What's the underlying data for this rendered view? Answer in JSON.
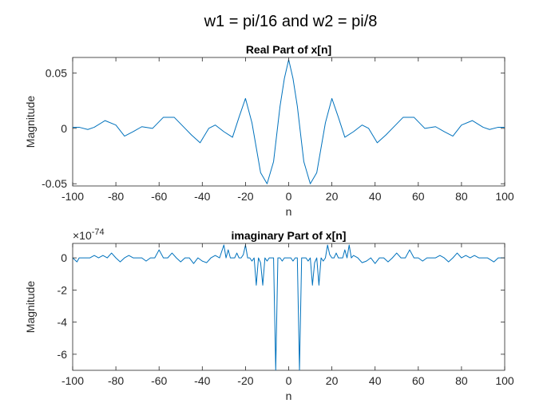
{
  "figure": {
    "suptitle": "w1 = pi/16 and w2 = pi/8"
  },
  "chart_data": [
    {
      "type": "line",
      "title": "Real Part of x[n]",
      "xlabel": "n",
      "ylabel": "Magnitude",
      "xlim": [
        -100,
        100
      ],
      "ylim": [
        -0.052,
        0.064
      ],
      "xticks": [
        -100,
        -80,
        -60,
        -40,
        -20,
        0,
        20,
        40,
        60,
        80,
        100
      ],
      "xtick_labels": [
        "-100",
        "-80",
        "-60",
        "-40",
        "-20",
        "0",
        "20",
        "40",
        "60",
        "80",
        "100"
      ],
      "yticks": [
        -0.05,
        0,
        0.05
      ],
      "ytick_labels": [
        "-0.05",
        "0",
        "0.05"
      ],
      "exponent_label": "",
      "grid": false,
      "color": "#0072BD",
      "series": [
        {
          "x": [
            -100,
            -97,
            -93,
            -90,
            -85,
            -80,
            -76,
            -72,
            -68,
            -63,
            -58,
            -53,
            -48,
            -45,
            -41,
            -37,
            -34,
            -30,
            -26,
            -23,
            -20,
            -17,
            -13,
            -10,
            -7,
            -4,
            -2,
            0,
            2,
            4,
            7,
            10,
            13,
            17,
            20,
            23,
            26,
            30,
            34,
            37,
            41,
            45,
            48,
            53,
            58,
            63,
            68,
            72,
            76,
            80,
            85,
            90,
            93,
            97,
            100
          ],
          "y": [
            0.001,
            0.001,
            -0.001,
            0.001,
            0.007,
            0.003,
            -0.007,
            -0.003,
            0.0015,
            0.0,
            0.01,
            0.01,
            0.0,
            -0.006,
            -0.013,
            0.0,
            0.003,
            -0.003,
            -0.008,
            0.01,
            0.027,
            0.005,
            -0.04,
            -0.05,
            -0.03,
            0.02,
            0.045,
            0.062,
            0.045,
            0.02,
            -0.03,
            -0.05,
            -0.04,
            0.005,
            0.027,
            0.01,
            -0.008,
            -0.003,
            0.003,
            0.0,
            -0.013,
            -0.006,
            0.0,
            0.01,
            0.01,
            0.0,
            0.0015,
            -0.003,
            -0.007,
            0.003,
            0.007,
            0.001,
            -0.001,
            0.001,
            0.001
          ]
        }
      ]
    },
    {
      "type": "line",
      "title": "imaginary Part of x[n]",
      "xlabel": "n",
      "ylabel": "Magnitude",
      "xlim": [
        -100,
        100
      ],
      "ylim": [
        -7,
        0.9
      ],
      "xticks": [
        -100,
        -80,
        -60,
        -40,
        -20,
        0,
        20,
        40,
        60,
        80,
        100
      ],
      "xtick_labels": [
        "-100",
        "-80",
        "-60",
        "-40",
        "-20",
        "0",
        "20",
        "40",
        "60",
        "80",
        "100"
      ],
      "yticks": [
        -6,
        -4,
        -2,
        0
      ],
      "ytick_labels": [
        "-6",
        "-4",
        "-2",
        "0"
      ],
      "exponent_label": "×10",
      "exponent_power": "-74",
      "grid": false,
      "color": "#0072BD",
      "series": [
        {
          "x": [
            -100,
            -98,
            -97,
            -95,
            -92,
            -90,
            -88,
            -86,
            -84,
            -82,
            -80,
            -78,
            -76,
            -74,
            -72,
            -70,
            -68,
            -66,
            -64,
            -62,
            -60,
            -58,
            -56,
            -54,
            -52,
            -50,
            -48,
            -46,
            -44,
            -42,
            -40,
            -38,
            -36,
            -34,
            -32,
            -30,
            -29,
            -28,
            -27,
            -26,
            -25,
            -24,
            -23,
            -22,
            -21,
            -20,
            -19,
            -18,
            -17,
            -16,
            -15,
            -14,
            -13,
            -12,
            -11,
            -10,
            -9,
            -8,
            -7,
            -6,
            -5,
            -4,
            -3,
            -2,
            -1,
            0,
            1,
            2,
            3,
            4,
            5,
            6,
            7,
            8,
            9,
            10,
            11,
            12,
            13,
            14,
            15,
            16,
            17,
            18,
            19,
            20,
            21,
            22,
            23,
            24,
            25,
            26,
            27,
            28,
            29,
            30,
            32,
            34,
            36,
            38,
            40,
            42,
            44,
            46,
            48,
            50,
            52,
            54,
            56,
            58,
            60,
            62,
            64,
            66,
            68,
            70,
            72,
            74,
            76,
            78,
            80,
            82,
            84,
            86,
            88,
            90,
            92,
            95,
            97,
            98,
            100
          ],
          "y": [
            0,
            -0.25,
            0,
            0,
            0,
            0.15,
            0,
            0.15,
            0,
            0.3,
            0,
            -0.25,
            0,
            0.15,
            0,
            0,
            0,
            -0.2,
            0,
            0,
            0.5,
            0,
            0,
            0.3,
            0,
            -0.25,
            0,
            0,
            -0.35,
            0,
            -0.2,
            -0.3,
            0,
            0.15,
            0,
            0.8,
            0,
            0.5,
            0,
            0,
            0,
            0.3,
            0,
            0,
            0.2,
            0.8,
            0,
            0,
            -0.2,
            0,
            -1.7,
            0,
            -0.3,
            -1.7,
            0,
            -0.2,
            0,
            0,
            0,
            -7,
            0,
            0,
            -0.2,
            0,
            0,
            0,
            0,
            -0.2,
            0,
            0,
            -7,
            0,
            0,
            0,
            -0.2,
            0,
            -1.7,
            -0.3,
            0,
            -1.7,
            0,
            -0.2,
            0,
            0.8,
            0.2,
            0,
            0,
            0.3,
            0,
            0,
            0,
            0.5,
            0,
            0.8,
            0,
            0.15,
            0,
            -0.3,
            -0.2,
            0,
            -0.35,
            0,
            0,
            -0.25,
            0,
            0.3,
            0,
            0,
            0.5,
            0,
            0,
            -0.2,
            0,
            0,
            0,
            0.15,
            0,
            -0.25,
            0,
            0.3,
            0,
            0.15,
            0,
            0.15,
            0,
            0,
            0,
            -0.25,
            0,
            0,
            0
          ]
        }
      ]
    }
  ]
}
